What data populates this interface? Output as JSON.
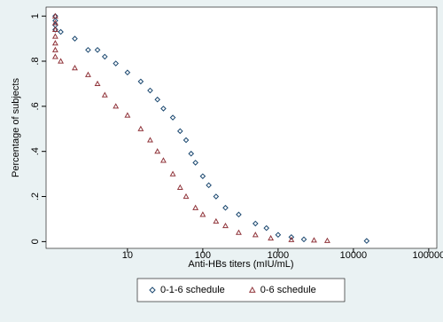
{
  "chart_data": {
    "type": "scatter",
    "x_label": "Anti-HBs titers (mIU/mL)",
    "y_label": "Percentage of subjects",
    "x_log": true,
    "xlim": [
      0.83,
      128000
    ],
    "xticks": [
      10,
      100,
      1000,
      10000,
      100000
    ],
    "ylim": [
      -0.03,
      1.04
    ],
    "yticks": [
      0,
      {
        "value": 0.2,
        "label": ".2"
      },
      {
        "value": 0.4,
        "label": ".4"
      },
      {
        "value": 0.6,
        "label": ".6"
      },
      {
        "value": 0.8,
        "label": ".8"
      },
      1
    ],
    "legend": "bottom",
    "series": [
      {
        "name": "0-1-6 schedule",
        "color": "#1a476f",
        "marker": "diamond",
        "x": [
          1.1,
          1.1,
          1.1,
          1.1,
          1.3,
          2,
          3,
          4,
          5,
          7,
          10,
          15,
          20,
          25,
          30,
          40,
          50,
          60,
          70,
          80,
          100,
          120,
          150,
          200,
          300,
          500,
          700,
          1000,
          1500,
          2200,
          15000
        ],
        "values": [
          1.0,
          0.98,
          0.96,
          0.94,
          0.93,
          0.9,
          0.85,
          0.85,
          0.82,
          0.79,
          0.75,
          0.71,
          0.67,
          0.63,
          0.59,
          0.55,
          0.49,
          0.45,
          0.39,
          0.35,
          0.29,
          0.25,
          0.2,
          0.15,
          0.12,
          0.08,
          0.06,
          0.03,
          0.02,
          0.01,
          0.003
        ]
      },
      {
        "name": "0-6 schedule",
        "color": "#90353b",
        "marker": "triangle",
        "x": [
          1.1,
          1.1,
          1.1,
          1.1,
          1.1,
          1.1,
          1.1,
          1.3,
          2,
          3,
          4,
          5,
          7,
          10,
          15,
          20,
          25,
          30,
          40,
          50,
          60,
          80,
          100,
          150,
          200,
          300,
          500,
          800,
          1500,
          3000,
          4500
        ],
        "values": [
          1.0,
          0.97,
          0.94,
          0.91,
          0.88,
          0.85,
          0.82,
          0.8,
          0.77,
          0.74,
          0.7,
          0.65,
          0.6,
          0.56,
          0.5,
          0.45,
          0.4,
          0.36,
          0.3,
          0.24,
          0.2,
          0.15,
          0.12,
          0.09,
          0.07,
          0.04,
          0.03,
          0.015,
          0.008,
          0.006,
          0.004
        ]
      }
    ]
  }
}
